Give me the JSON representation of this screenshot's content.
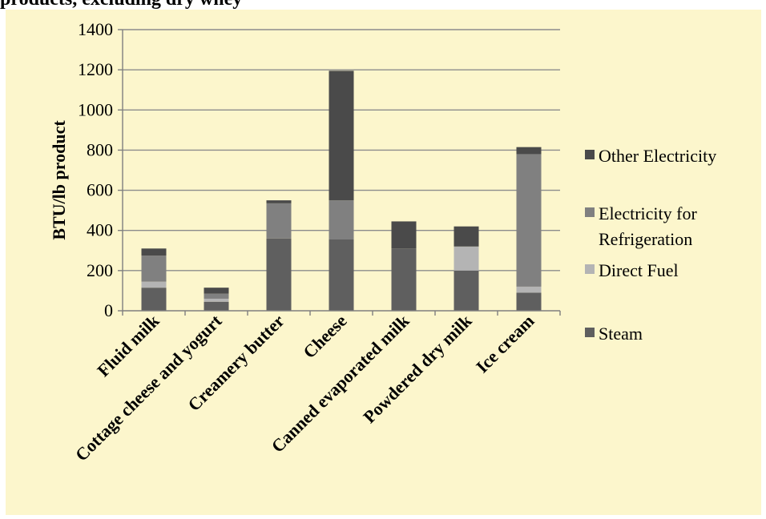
{
  "page": {
    "header_text": "products, excluding dry whey"
  },
  "colors": {
    "background": "#fcf6cc",
    "gridline": "#8c8c8c",
    "axis": "#7f7f7f"
  },
  "chart_data": {
    "type": "bar",
    "stacked": true,
    "categories": [
      "Fluid milk",
      "Cottage cheese and yogurt",
      "Creamery butter",
      "Cheese",
      "Canned evaporated milk",
      "Powdered dry milk",
      "Ice cream"
    ],
    "series": [
      {
        "name": "Steam",
        "color": "#5f5f5f",
        "values": [
          115,
          45,
          360,
          355,
          310,
          200,
          90
        ]
      },
      {
        "name": "Direct Fuel",
        "color": "#b4b4b4",
        "values": [
          30,
          15,
          0,
          0,
          0,
          120,
          30
        ]
      },
      {
        "name": "Electricity for Refrigeration",
        "color": "#808080",
        "values": [
          130,
          25,
          175,
          195,
          0,
          0,
          660
        ]
      },
      {
        "name": "Other Electricity",
        "color": "#4a4a4a",
        "values": [
          35,
          30,
          15,
          645,
          135,
          100,
          35
        ]
      }
    ],
    "legend_order": [
      "Other Electricity",
      "Electricity for Refrigeration",
      "Direct Fuel",
      "Steam"
    ],
    "legend_lines": {
      "Other Electricity": [
        "Other Electricity"
      ],
      "Electricity for Refrigeration": [
        "Electricity for",
        "Refrigeration"
      ],
      "Direct Fuel": [
        "Direct Fuel"
      ],
      "Steam": [
        "Steam"
      ]
    },
    "ylabel": "BTU/lb product",
    "ylim": [
      0,
      1400
    ],
    "yticks": [
      0,
      200,
      400,
      600,
      800,
      1000,
      1200,
      1400
    ],
    "grid": true,
    "legend_position": "right"
  }
}
